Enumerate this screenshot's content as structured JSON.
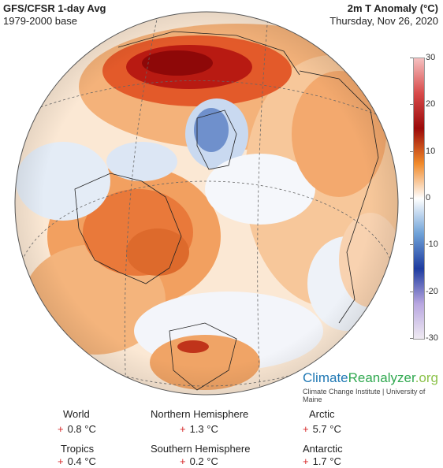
{
  "header": {
    "title_left": "GFS/CFSR 1-day Avg",
    "sub_left": "1979-2000 base",
    "title_right": "2m T Anomaly (°C)",
    "sub_right": "Thursday, Nov 26, 2020"
  },
  "colorbar": {
    "ticks": [
      "30",
      "20",
      "10",
      "0",
      "-10",
      "-20",
      "-30"
    ],
    "colors": [
      "#f5c0c0",
      "#d84a4a",
      "#9b0a0a",
      "#f08a2a",
      "#ffffff",
      "#6fa2d8",
      "#1e3ca0",
      "#b8a6e0",
      "#efeaf2"
    ]
  },
  "brand": {
    "part1": "Climate",
    "part2": "Reanalyzer",
    "part3": ".org",
    "institution": "Climate Change Institute | University of Maine"
  },
  "stats": {
    "world": {
      "label": "World",
      "sign": "+",
      "value": "0.8 °C"
    },
    "nh": {
      "label": "Northern Hemisphere",
      "sign": "+",
      "value": "1.3 °C"
    },
    "arctic": {
      "label": "Arctic",
      "sign": "+",
      "value": "5.7 °C"
    },
    "tropics": {
      "label": "Tropics",
      "sign": "+",
      "value": "0.4 °C"
    },
    "sh": {
      "label": "Southern Hemisphere",
      "sign": "+",
      "value": "0.2 °C"
    },
    "antarctic": {
      "label": "Antarctic",
      "sign": "+",
      "value": "1.7 °C"
    }
  }
}
